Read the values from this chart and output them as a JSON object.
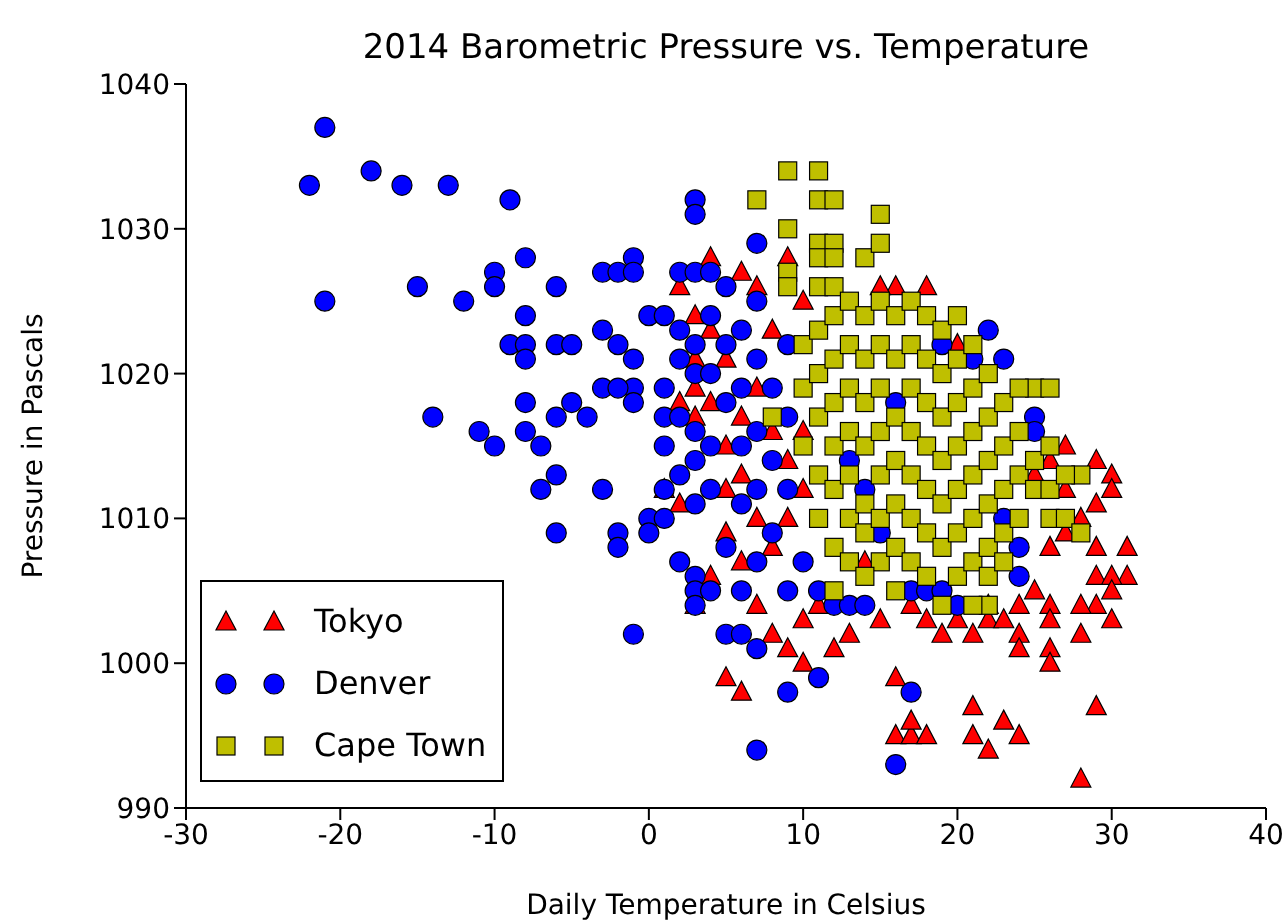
{
  "chart_data": {
    "type": "scatter",
    "title": "2014 Barometric Pressure vs. Temperature",
    "xlabel": "Daily Temperature in Celsius",
    "ylabel": "Pressure in Pascals",
    "xlim": [
      -30,
      40
    ],
    "ylim": [
      990,
      1040
    ],
    "xticks": [
      -30,
      -20,
      -10,
      0,
      10,
      20,
      30,
      40
    ],
    "yticks": [
      990,
      1000,
      1010,
      1020,
      1030,
      1040
    ],
    "legend": "bottom left",
    "series": [
      {
        "name": "Tokyo",
        "color": "#ff0000",
        "marker": "triangle",
        "x": [
          28,
          29,
          6,
          10,
          16,
          16,
          17,
          18,
          17,
          21,
          21,
          22,
          23,
          24,
          29,
          30,
          30,
          31,
          31,
          29,
          29,
          30,
          30,
          29,
          30,
          28,
          26,
          26,
          26,
          26,
          28,
          16,
          18,
          9,
          4,
          6,
          7,
          27,
          21,
          24,
          24,
          22,
          4,
          5,
          2,
          3,
          3,
          3,
          3,
          3,
          4,
          4,
          5,
          5,
          5,
          5,
          6,
          6,
          6,
          7,
          7,
          7,
          8,
          8,
          8,
          8,
          9,
          9,
          9,
          10,
          10,
          10,
          10,
          11,
          12,
          13,
          14,
          15,
          15,
          17,
          18,
          19,
          20,
          20,
          22,
          23,
          24,
          25,
          26,
          27,
          27,
          28,
          29,
          25,
          26,
          2,
          1,
          2
        ],
        "values": [
          992,
          997,
          998,
          1000,
          999,
          995,
          995,
          995,
          996,
          997,
          995,
          994,
          996,
          995,
          1014,
          1013,
          1012,
          1008,
          1006,
          1008,
          1006,
          1006,
          1005,
          1004,
          1003,
          1004,
          1004,
          1003,
          1001,
          1000,
          1002,
          1026,
          1026,
          1028,
          1028,
          1027,
          1026,
          1015,
          1002,
          1002,
          1001,
          1003,
          1006,
          999,
          1011,
          1004,
          1024,
          1021,
          1019,
          1017,
          1023,
          1018,
          1021,
          1015,
          1012,
          1009,
          1017,
          1013,
          1007,
          1019,
          1010,
          1004,
          1023,
          1016,
          1008,
          1002,
          1014,
          1010,
          1001,
          1025,
          1016,
          1012,
          1003,
          1004,
          1001,
          1002,
          1007,
          1003,
          1026,
          1004,
          1003,
          1002,
          1003,
          1022,
          1004,
          1003,
          1004,
          1013,
          1008,
          1009,
          1012,
          1010,
          1011,
          1005,
          1014,
          1026,
          1012,
          1018
        ]
      },
      {
        "name": "Denver",
        "color": "#0000ff",
        "marker": "circle",
        "x": [
          -21,
          -22,
          -18,
          -16,
          -13,
          -9,
          -21,
          -15,
          -12,
          -10,
          -10,
          -8,
          -6,
          -8,
          -9,
          -8,
          -8,
          -6,
          -5,
          -14,
          -11,
          -10,
          -8,
          -8,
          -7,
          -6,
          -7,
          -6,
          -5,
          -4,
          -3,
          -6,
          -2,
          -2,
          -3,
          -2,
          -1,
          -1,
          -3,
          -2,
          -1,
          -1,
          -1,
          -3,
          -2,
          -1,
          0,
          0,
          1,
          0,
          1,
          1,
          1,
          2,
          3,
          3,
          3,
          3,
          3,
          2,
          3,
          4,
          5,
          1,
          2,
          2,
          3,
          3,
          4,
          4,
          2,
          3,
          3,
          4,
          2,
          1,
          3,
          4,
          5,
          5,
          5,
          4,
          6,
          6,
          6,
          6,
          5,
          7,
          7,
          7,
          7,
          7,
          7,
          8,
          8,
          8,
          9,
          9,
          9,
          9,
          6,
          16,
          7,
          9,
          11,
          7,
          6,
          17,
          17,
          18,
          19,
          20,
          22,
          23,
          25,
          25,
          24,
          12,
          13,
          14,
          10,
          11,
          15,
          19,
          21,
          16,
          23,
          24,
          13,
          14
        ],
        "values": [
          1037,
          1033,
          1034,
          1033,
          1033,
          1032,
          1025,
          1026,
          1025,
          1027,
          1026,
          1028,
          1026,
          1024,
          1022,
          1022,
          1021,
          1022,
          1022,
          1017,
          1016,
          1015,
          1018,
          1016,
          1015,
          1013,
          1012,
          1017,
          1018,
          1017,
          1012,
          1009,
          1009,
          1008,
          1027,
          1027,
          1028,
          1027,
          1023,
          1022,
          1021,
          1019,
          1018,
          1019,
          1019,
          1002,
          1010,
          1009,
          1010,
          1024,
          1019,
          1017,
          1015,
          1027,
          1027,
          1032,
          1031,
          1006,
          1005,
          1007,
          1004,
          1005,
          1002,
          1024,
          1023,
          1021,
          1022,
          1020,
          1024,
          1020,
          1017,
          1016,
          1014,
          1015,
          1013,
          1012,
          1011,
          1012,
          1018,
          1022,
          1026,
          1027,
          1023,
          1019,
          1015,
          1011,
          1008,
          1029,
          1025,
          1021,
          1016,
          1012,
          1007,
          1019,
          1014,
          1009,
          1022,
          1017,
          1012,
          1005,
          1005,
          993,
          994,
          998,
          999,
          1001,
          1002,
          998,
          1005,
          1005,
          1005,
          1004,
          1023,
          1021,
          1017,
          1016,
          1006,
          1004,
          1004,
          1004,
          1007,
          1005,
          1009,
          1022,
          1021,
          1018,
          1010,
          1008,
          1014,
          1012
        ]
      },
      {
        "name": "Cape Town",
        "color": "#bfbf00",
        "marker": "square",
        "x": [
          9,
          11,
          7,
          11,
          12,
          9,
          15,
          11,
          12,
          14,
          15,
          11,
          12,
          9,
          9,
          11,
          12,
          25,
          26,
          28,
          26,
          27,
          28,
          22,
          12,
          8,
          10,
          10,
          10,
          11,
          11,
          11,
          11,
          11,
          12,
          12,
          12,
          12,
          12,
          12,
          13,
          13,
          13,
          13,
          13,
          13,
          13,
          14,
          14,
          14,
          14,
          14,
          14,
          15,
          15,
          15,
          15,
          15,
          15,
          15,
          16,
          16,
          16,
          16,
          16,
          16,
          17,
          17,
          17,
          17,
          17,
          17,
          17,
          18,
          18,
          18,
          18,
          18,
          18,
          18,
          19,
          19,
          19,
          19,
          19,
          19,
          20,
          20,
          20,
          20,
          20,
          20,
          20,
          21,
          21,
          21,
          21,
          21,
          21,
          22,
          22,
          22,
          22,
          22,
          22,
          23,
          23,
          23,
          23,
          23,
          24,
          24,
          24,
          24,
          25,
          25,
          26,
          26,
          27,
          19,
          21,
          16,
          14
        ],
        "values": [
          1034,
          1034,
          1032,
          1032,
          1032,
          1030,
          1031,
          1029,
          1029,
          1028,
          1029,
          1028,
          1028,
          1027,
          1026,
          1026,
          1026,
          1019,
          1019,
          1013,
          1010,
          1010,
          1009,
          1004,
          1005,
          1017,
          1019,
          1022,
          1015,
          1023,
          1020,
          1017,
          1013,
          1010,
          1024,
          1021,
          1018,
          1015,
          1012,
          1008,
          1025,
          1022,
          1019,
          1016,
          1013,
          1010,
          1007,
          1024,
          1021,
          1018,
          1015,
          1011,
          1009,
          1025,
          1022,
          1019,
          1016,
          1013,
          1010,
          1007,
          1024,
          1021,
          1017,
          1014,
          1011,
          1008,
          1025,
          1022,
          1019,
          1016,
          1013,
          1010,
          1007,
          1024,
          1021,
          1018,
          1015,
          1012,
          1009,
          1006,
          1023,
          1020,
          1017,
          1014,
          1011,
          1008,
          1024,
          1021,
          1018,
          1015,
          1012,
          1009,
          1006,
          1022,
          1019,
          1016,
          1013,
          1010,
          1007,
          1020,
          1017,
          1014,
          1011,
          1008,
          1006,
          1018,
          1015,
          1012,
          1009,
          1007,
          1019,
          1016,
          1013,
          1010,
          1014,
          1012,
          1015,
          1012,
          1013,
          1004,
          1004,
          1005,
          1006
        ]
      }
    ]
  }
}
